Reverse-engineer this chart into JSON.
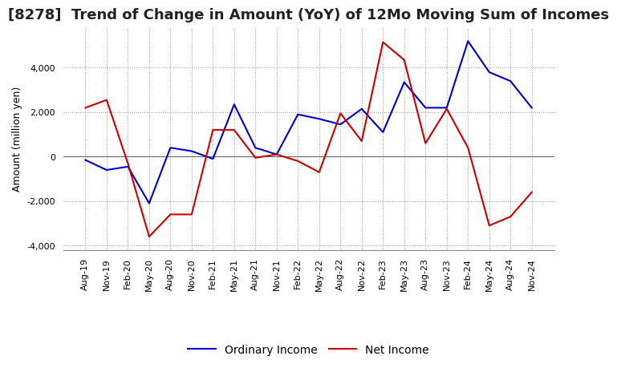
{
  "title": "[8278]  Trend of Change in Amount (YoY) of 12Mo Moving Sum of Incomes",
  "ylabel": "Amount (million yen)",
  "x_labels": [
    "Aug-19",
    "Nov-19",
    "Feb-20",
    "May-20",
    "Aug-20",
    "Nov-20",
    "Feb-21",
    "May-21",
    "Aug-21",
    "Nov-21",
    "Feb-22",
    "May-22",
    "Aug-22",
    "Nov-22",
    "Feb-23",
    "May-23",
    "Aug-23",
    "Nov-23",
    "Feb-24",
    "May-24",
    "Aug-24",
    "Nov-24"
  ],
  "ordinary_income": [
    -150,
    -600,
    -450,
    -2100,
    400,
    250,
    -100,
    2350,
    400,
    100,
    1900,
    1700,
    1450,
    2150,
    1100,
    3350,
    2200,
    2200,
    5200,
    3800,
    3400,
    2200
  ],
  "net_income": [
    2200,
    2550,
    -300,
    -3600,
    -2600,
    -2600,
    1200,
    1200,
    -50,
    100,
    -200,
    -700,
    1950,
    700,
    5150,
    4350,
    600,
    2150,
    400,
    -3100,
    -2700,
    -1600
  ],
  "ordinary_color": "#0000CC",
  "net_color": "#CC0000",
  "ylim_min": -4200,
  "ylim_max": 5800,
  "yticks": [
    -4000,
    -2000,
    0,
    2000,
    4000
  ],
  "background_color": "#FFFFFF",
  "grid_color": "#999999",
  "title_fontsize": 13,
  "axis_fontsize": 9,
  "tick_fontsize": 8,
  "legend_fontsize": 10,
  "linewidth": 1.5
}
